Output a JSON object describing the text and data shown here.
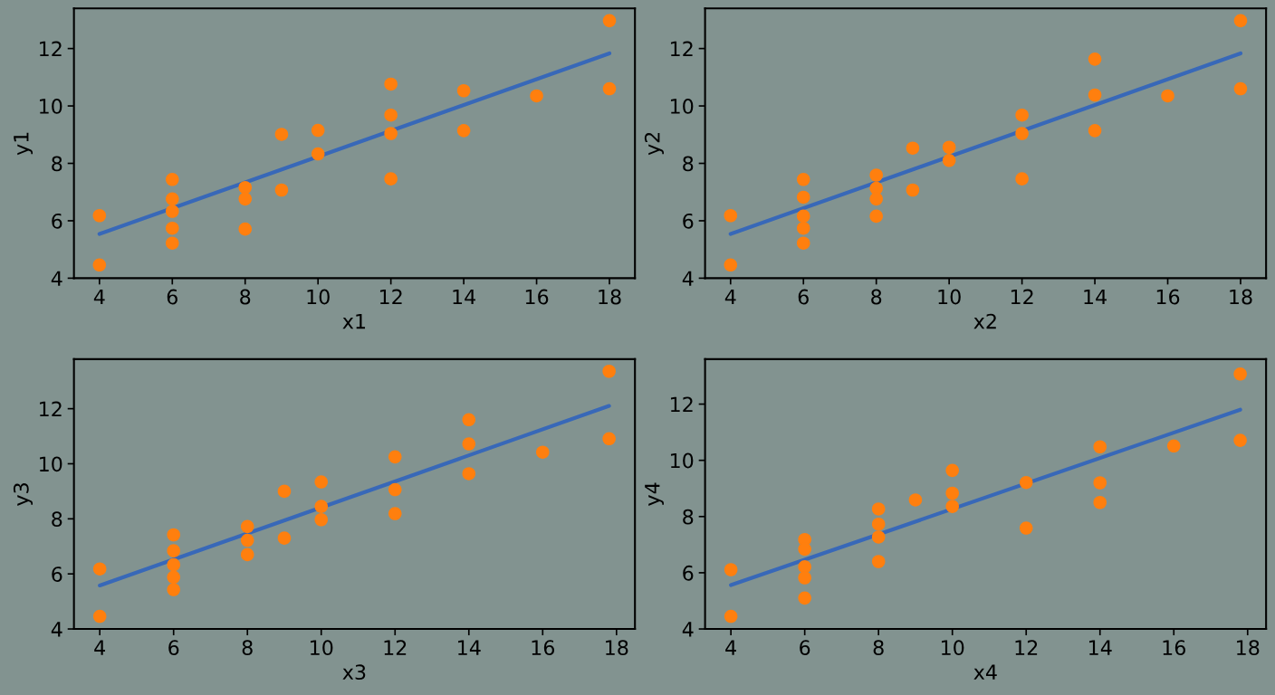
{
  "chart_data": [
    {
      "type": "scatter",
      "xlabel": "x1",
      "ylabel": "y1",
      "xlim": [
        3.3,
        18.7
      ],
      "ylim": [
        4,
        13.4
      ],
      "xticks": [
        4,
        6,
        8,
        10,
        12,
        14,
        16,
        18
      ],
      "yticks": [
        4,
        6,
        8,
        10,
        12
      ],
      "series": [
        {
          "color": "#ff7f0e",
          "marker": "circle",
          "x": [
            4,
            4,
            6,
            6,
            6,
            6,
            6,
            8,
            8,
            8,
            9,
            9,
            10,
            10,
            12,
            12,
            12,
            12,
            14,
            14,
            16,
            18,
            18
          ],
          "values": [
            6.18,
            4.46,
            7.44,
            6.76,
            6.33,
            5.74,
            5.22,
            7.16,
            6.76,
            5.71,
            9.01,
            7.07,
            9.15,
            8.33,
            10.76,
            9.68,
            9.04,
            7.46,
            10.53,
            9.14,
            10.35,
            12.97,
            10.6
          ]
        },
        {
          "type": "line",
          "marker": "none",
          "color": "#3868b8",
          "x": [
            4,
            18
          ],
          "values": [
            5.54,
            11.83
          ]
        }
      ]
    },
    {
      "type": "scatter",
      "xlabel": "x2",
      "ylabel": "y2",
      "xlim": [
        3.3,
        18.7
      ],
      "ylim": [
        4,
        13.4
      ],
      "xticks": [
        4,
        6,
        8,
        10,
        12,
        14,
        16,
        18
      ],
      "yticks": [
        4,
        6,
        8,
        10,
        12
      ],
      "series": [
        {
          "color": "#ff7f0e",
          "marker": "circle",
          "x": [
            4,
            4,
            6,
            6,
            6,
            6,
            6,
            8,
            8,
            8,
            8,
            9,
            9,
            10,
            10,
            12,
            12,
            12,
            14,
            14,
            14,
            16,
            18,
            18
          ],
          "values": [
            6.18,
            4.46,
            7.44,
            6.82,
            6.16,
            5.74,
            5.22,
            7.59,
            7.13,
            6.76,
            6.16,
            8.53,
            7.07,
            8.56,
            8.1,
            9.68,
            9.04,
            7.46,
            11.63,
            10.38,
            9.14,
            10.35,
            12.97,
            10.6
          ]
        },
        {
          "type": "line",
          "marker": "none",
          "color": "#3868b8",
          "x": [
            4,
            18
          ],
          "values": [
            5.54,
            11.83
          ]
        }
      ]
    },
    {
      "type": "scatter",
      "xlabel": "x3",
      "ylabel": "y3",
      "xlim": [
        3.3,
        18.5
      ],
      "ylim": [
        4,
        13.8
      ],
      "xticks": [
        4,
        6,
        8,
        10,
        12,
        14,
        16,
        18
      ],
      "yticks": [
        4,
        6,
        8,
        10,
        12
      ],
      "series": [
        {
          "color": "#ff7f0e",
          "marker": "circle",
          "x": [
            4,
            4,
            6,
            6,
            6,
            6,
            6,
            8,
            8,
            8,
            9,
            9,
            10,
            10,
            10,
            12,
            12,
            12,
            14,
            14,
            14,
            16,
            17.8,
            17.8
          ],
          "values": [
            6.18,
            4.46,
            7.42,
            6.84,
            6.33,
            5.88,
            5.43,
            7.72,
            7.22,
            6.7,
            9.0,
            7.3,
            9.34,
            8.45,
            7.97,
            10.25,
            9.06,
            8.19,
            11.6,
            10.72,
            9.64,
            10.42,
            13.36,
            10.91
          ]
        },
        {
          "type": "line",
          "marker": "none",
          "color": "#3868b8",
          "x": [
            4,
            17.8
          ],
          "values": [
            5.58,
            12.1
          ]
        }
      ]
    },
    {
      "type": "scatter",
      "xlabel": "x4",
      "ylabel": "y4",
      "xlim": [
        3.3,
        18.5
      ],
      "ylim": [
        4,
        13.6
      ],
      "xticks": [
        4,
        6,
        8,
        10,
        12,
        14,
        16,
        18
      ],
      "yticks": [
        4,
        6,
        8,
        10,
        12
      ],
      "series": [
        {
          "color": "#ff7f0e",
          "marker": "circle",
          "x": [
            4,
            4,
            6,
            6,
            6,
            6,
            6,
            8,
            8,
            8,
            8,
            9,
            10,
            10,
            10,
            12,
            12,
            14,
            14,
            14,
            16,
            17.8,
            17.8
          ],
          "values": [
            6.11,
            4.45,
            7.18,
            6.84,
            6.21,
            5.82,
            5.1,
            8.27,
            7.73,
            7.27,
            6.4,
            8.59,
            9.64,
            8.83,
            8.36,
            9.21,
            7.59,
            10.48,
            9.2,
            8.5,
            10.51,
            13.07,
            10.71
          ]
        },
        {
          "type": "line",
          "marker": "none",
          "color": "#3868b8",
          "x": [
            4,
            17.8
          ],
          "values": [
            5.56,
            11.8
          ]
        }
      ]
    }
  ]
}
